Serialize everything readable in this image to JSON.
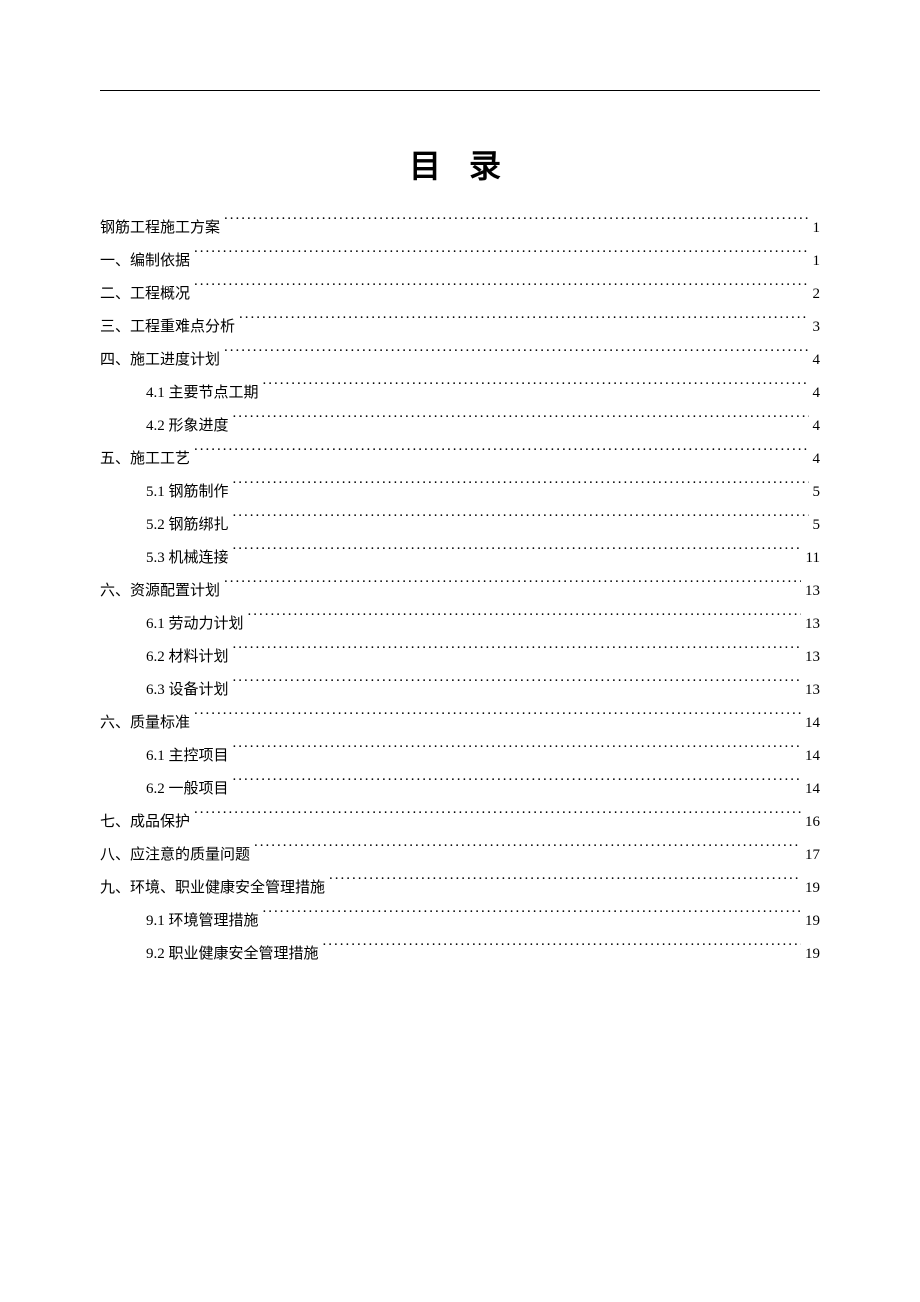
{
  "title": "目 录",
  "colors": {
    "background": "#ffffff",
    "text": "#000000",
    "rule": "#000000"
  },
  "typography": {
    "title_fontsize": 32,
    "body_fontsize": 15,
    "title_letter_spacing": 10,
    "line_height": 2.2
  },
  "toc": [
    {
      "level": 1,
      "label": "钢筋工程施工方案",
      "page": "1"
    },
    {
      "level": 1,
      "label": "一、编制依据",
      "page": "1"
    },
    {
      "level": 1,
      "label": "二、工程概况",
      "page": "2"
    },
    {
      "level": 1,
      "label": "三、工程重难点分析",
      "page": "3"
    },
    {
      "level": 1,
      "label": "四、施工进度计划",
      "page": "4"
    },
    {
      "level": 2,
      "label": "4.1 主要节点工期",
      "page": "4"
    },
    {
      "level": 2,
      "label": "4.2 形象进度",
      "page": "4"
    },
    {
      "level": 1,
      "label": "五、施工工艺",
      "page": "4"
    },
    {
      "level": 2,
      "label": "5.1  钢筋制作",
      "page": "5"
    },
    {
      "level": 2,
      "label": "5.2 钢筋绑扎",
      "page": "5"
    },
    {
      "level": 2,
      "label": "5.3 机械连接",
      "page": "11"
    },
    {
      "level": 1,
      "label": "六、资源配置计划",
      "page": "13"
    },
    {
      "level": 2,
      "label": "6.1 劳动力计划",
      "page": "13"
    },
    {
      "level": 2,
      "label": "6.2 材料计划",
      "page": "13"
    },
    {
      "level": 2,
      "label": "6.3 设备计划",
      "page": "13"
    },
    {
      "level": 1,
      "label": "六、质量标准",
      "page": "14"
    },
    {
      "level": 2,
      "label": "6.1 主控项目",
      "page": "14"
    },
    {
      "level": 2,
      "label": "6.2 一般项目",
      "page": "14"
    },
    {
      "level": 1,
      "label": "七、成品保护",
      "page": "16"
    },
    {
      "level": 1,
      "label": "八、应注意的质量问题",
      "page": "17"
    },
    {
      "level": 1,
      "label": "九、环境、职业健康安全管理措施",
      "page": "19"
    },
    {
      "level": 2,
      "label": "9.1 环境管理措施",
      "page": "19"
    },
    {
      "level": 2,
      "label": "9.2 职业健康安全管理措施",
      "page": "19"
    }
  ]
}
